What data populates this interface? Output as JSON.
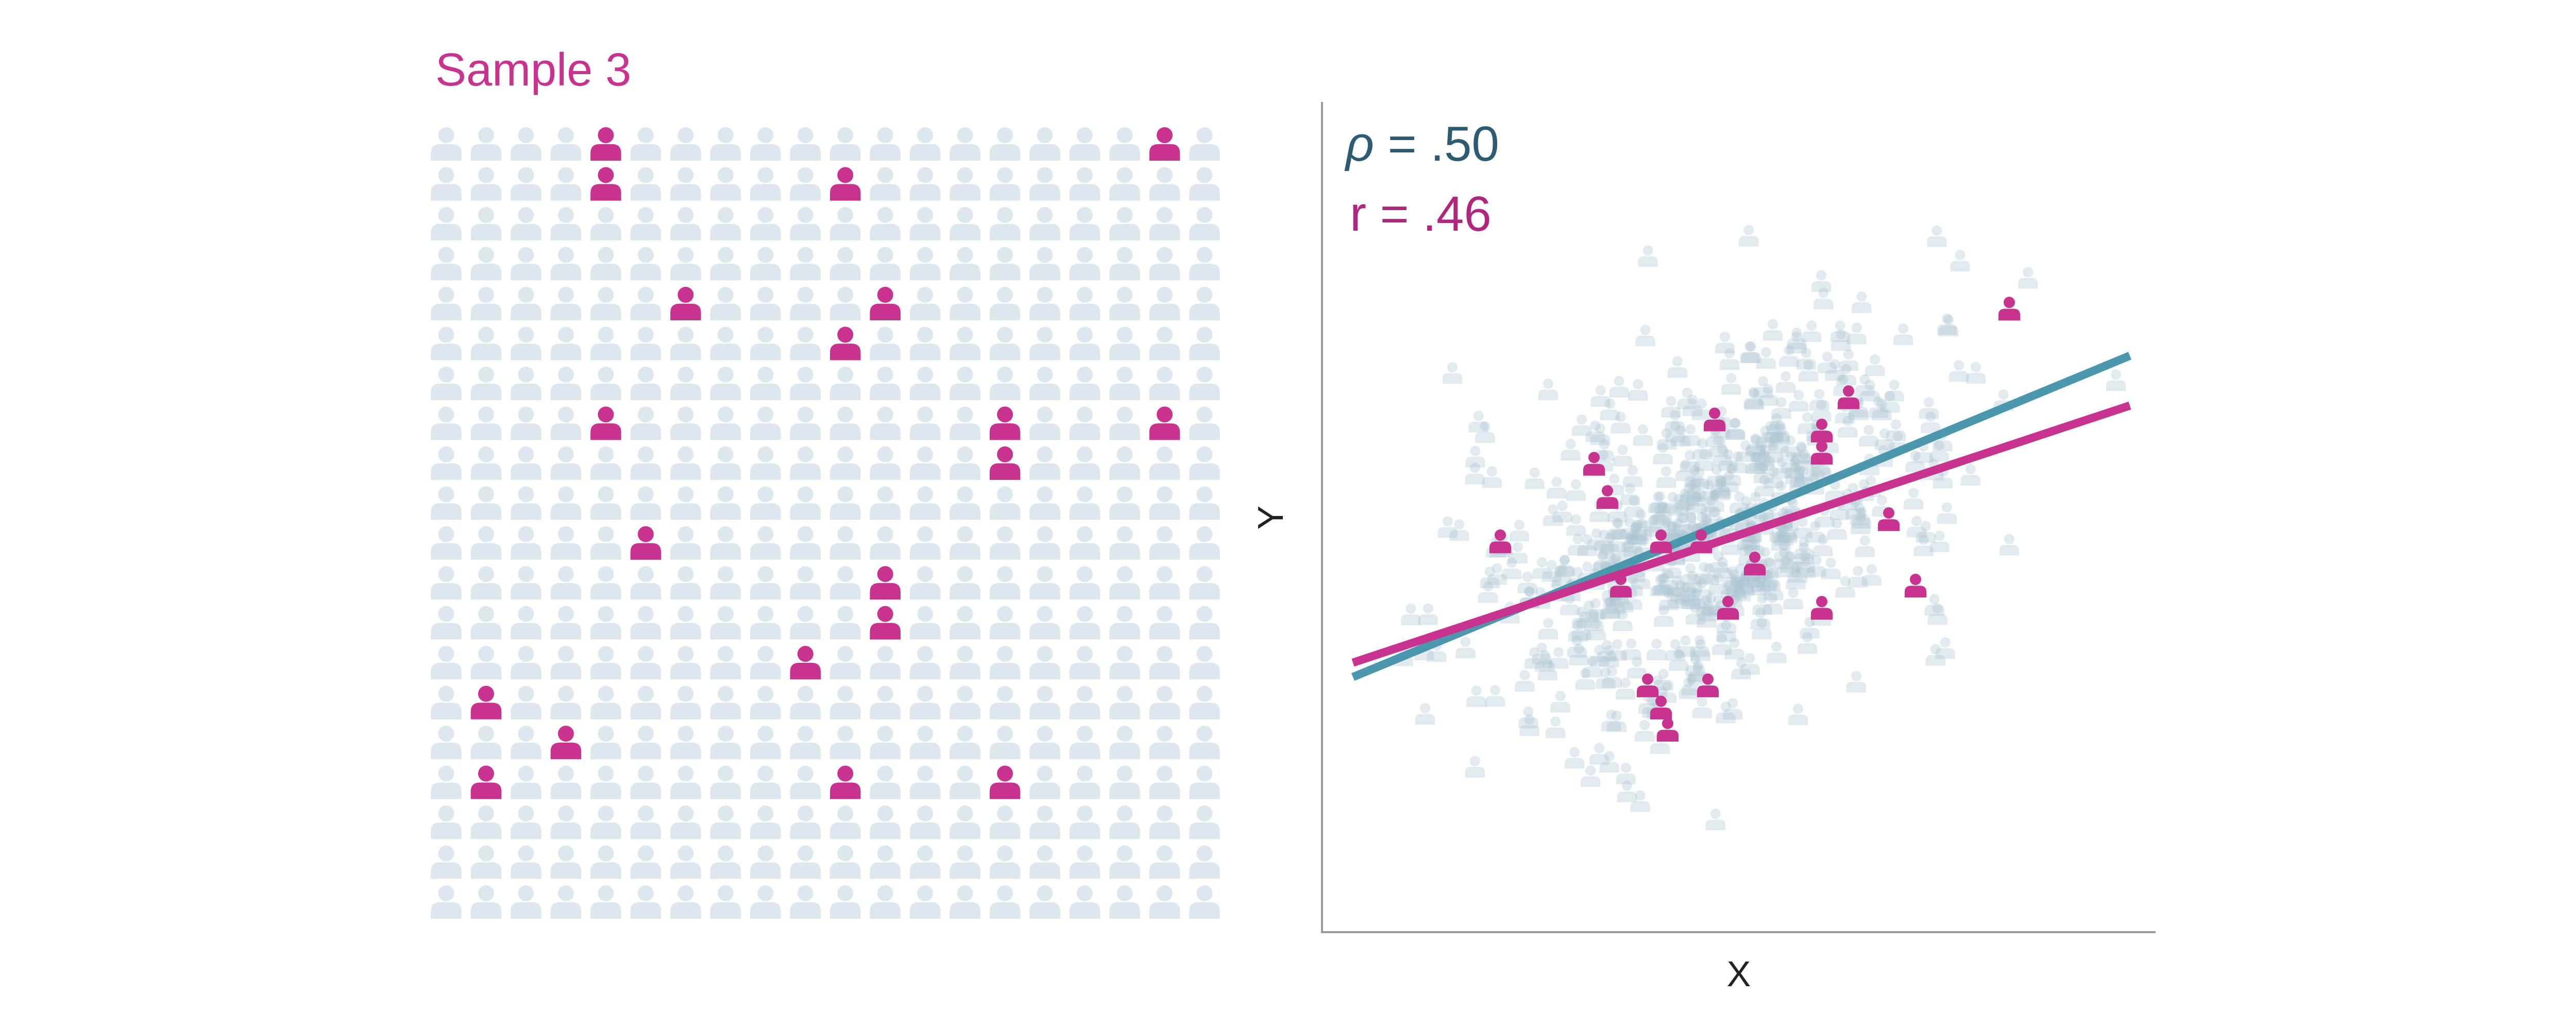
{
  "sample_title": "Sample 3",
  "colors": {
    "background": "#ffffff",
    "population": "#dde8ee",
    "sample": "#c8338f",
    "population_line": "#4b97ad",
    "sample_line": "#c8338f",
    "rho_text": "#2c5b72",
    "r_text": "#b0267e",
    "axis": "#9a9a9a",
    "axis_label": "#222222"
  },
  "icons": {
    "person": "person-icon"
  },
  "stats": {
    "rho_symbol": "ρ",
    "rho_value": " = .50",
    "r_text": "r = .46"
  },
  "grid": {
    "columns": 20,
    "rows": 20,
    "highlighted": [
      [
        0,
        4
      ],
      [
        1,
        4
      ],
      [
        0,
        18
      ],
      [
        1,
        10
      ],
      [
        4,
        6
      ],
      [
        4,
        11
      ],
      [
        5,
        10
      ],
      [
        7,
        4
      ],
      [
        7,
        14
      ],
      [
        7,
        18
      ],
      [
        8,
        14
      ],
      [
        10,
        5
      ],
      [
        11,
        11
      ],
      [
        12,
        11
      ],
      [
        13,
        9
      ],
      [
        14,
        1
      ],
      [
        15,
        3
      ],
      [
        16,
        1
      ],
      [
        16,
        10
      ],
      [
        16,
        14
      ]
    ]
  },
  "chart_data": [
    {
      "type": "scatter",
      "title": "",
      "xlabel": "X",
      "ylabel": "Y",
      "xlim": [
        -2.8,
        3.2
      ],
      "ylim": [
        -3.4,
        3.2
      ],
      "series": [
        {
          "name": "",
          "role": "population",
          "seed": 7,
          "count": 500,
          "correlation": 0.5,
          "marker": "person-icon",
          "opacity": 0.35
        },
        {
          "name": "",
          "role": "sample",
          "marker": "person-icon",
          "points": [
            [
              2.2,
              2.0
            ],
            [
              1.0,
              1.2
            ],
            [
              0.0,
              1.0
            ],
            [
              0.8,
              0.9
            ],
            [
              0.8,
              0.7
            ],
            [
              -0.9,
              0.6
            ],
            [
              -0.8,
              0.3
            ],
            [
              1.3,
              0.1
            ],
            [
              -1.6,
              -0.1
            ],
            [
              -0.4,
              -0.1
            ],
            [
              -0.1,
              -0.1
            ],
            [
              0.3,
              -0.3
            ],
            [
              -0.7,
              -0.5
            ],
            [
              1.5,
              -0.5
            ],
            [
              0.1,
              -0.7
            ],
            [
              0.8,
              -0.7
            ],
            [
              -0.5,
              -1.4
            ],
            [
              -0.05,
              -1.4
            ],
            [
              -0.4,
              -1.6
            ],
            [
              -0.35,
              -1.8
            ]
          ]
        }
      ],
      "regression_lines": [
        {
          "label": "rho",
          "slope": 0.5,
          "intercept": 0.02,
          "x_range": [
            -2.7,
            3.1
          ]
        },
        {
          "label": "r",
          "slope": 0.4,
          "intercept": -0.12,
          "x_range": [
            -2.7,
            3.1
          ]
        }
      ]
    }
  ]
}
